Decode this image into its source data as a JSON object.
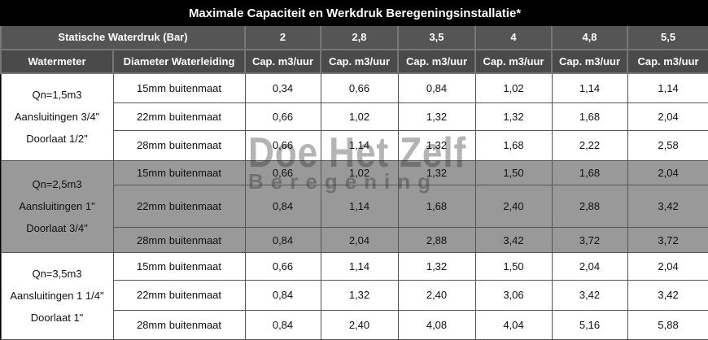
{
  "title": "Maximale Capaciteit en Werkdruk Beregeningsinstallatie*",
  "pressure_label": "Statische Waterdruk (Bar)",
  "pressures": [
    "2",
    "2,8",
    "3,5",
    "4",
    "4,8",
    "5,5"
  ],
  "col_watermeter": "Watermeter",
  "col_diameter": "Diameter Waterleiding",
  "cap_label": "Cap. m3/uur",
  "groups": [
    {
      "meter": [
        "Qn=1,5m3",
        "Aansluitingen 3/4\"",
        "Doorlaat 1/2\""
      ],
      "rows": [
        {
          "diameter": "15mm buitenmaat",
          "values": [
            "0,34",
            "0,66",
            "0,84",
            "1,02",
            "1,14",
            "1,14"
          ]
        },
        {
          "diameter": "22mm buitenmaat",
          "values": [
            "0,66",
            "1,02",
            "1,32",
            "1,32",
            "1,68",
            "2,04"
          ]
        },
        {
          "diameter": "28mm buitenmaat",
          "values": [
            "0,66",
            "1,14",
            "1,32",
            "1,68",
            "2,22",
            "2,58"
          ]
        }
      ]
    },
    {
      "meter": [
        "Qn=2,5m3",
        "Aansluitingen 1\"",
        "Doorlaat 3/4\""
      ],
      "rows": [
        {
          "diameter": "15mm buitenmaat",
          "values": [
            "0,66",
            "1,02",
            "1,32",
            "1,50",
            "1,68",
            "2,04"
          ]
        },
        {
          "diameter": "22mm buitenmaat",
          "values": [
            "0,84",
            "1,14",
            "1,68",
            "2,40",
            "2,88",
            "3,42"
          ]
        },
        {
          "diameter": "28mm buitenmaat",
          "values": [
            "0,84",
            "2,04",
            "2,88",
            "3,42",
            "3,72",
            "3,72"
          ]
        }
      ]
    },
    {
      "meter": [
        "Qn=3,5m3",
        "Aansluitingen 1 1/4\"",
        "Doorlaat 1\""
      ],
      "rows": [
        {
          "diameter": "15mm buitenmaat",
          "values": [
            "0,66",
            "1,14",
            "1,32",
            "1,50",
            "2,04",
            "2,04"
          ]
        },
        {
          "diameter": "22mm buitenmaat",
          "values": [
            "0,84",
            "1,32",
            "2,40",
            "3,06",
            "3,42",
            "3,42"
          ]
        },
        {
          "diameter": "28mm buitenmaat",
          "values": [
            "0,84",
            "2,40",
            "4,08",
            "4,04",
            "5,16",
            "5,88"
          ]
        }
      ]
    }
  ],
  "watermark": {
    "line1": "Doe Het Zelf",
    "line2": "Beregening"
  }
}
